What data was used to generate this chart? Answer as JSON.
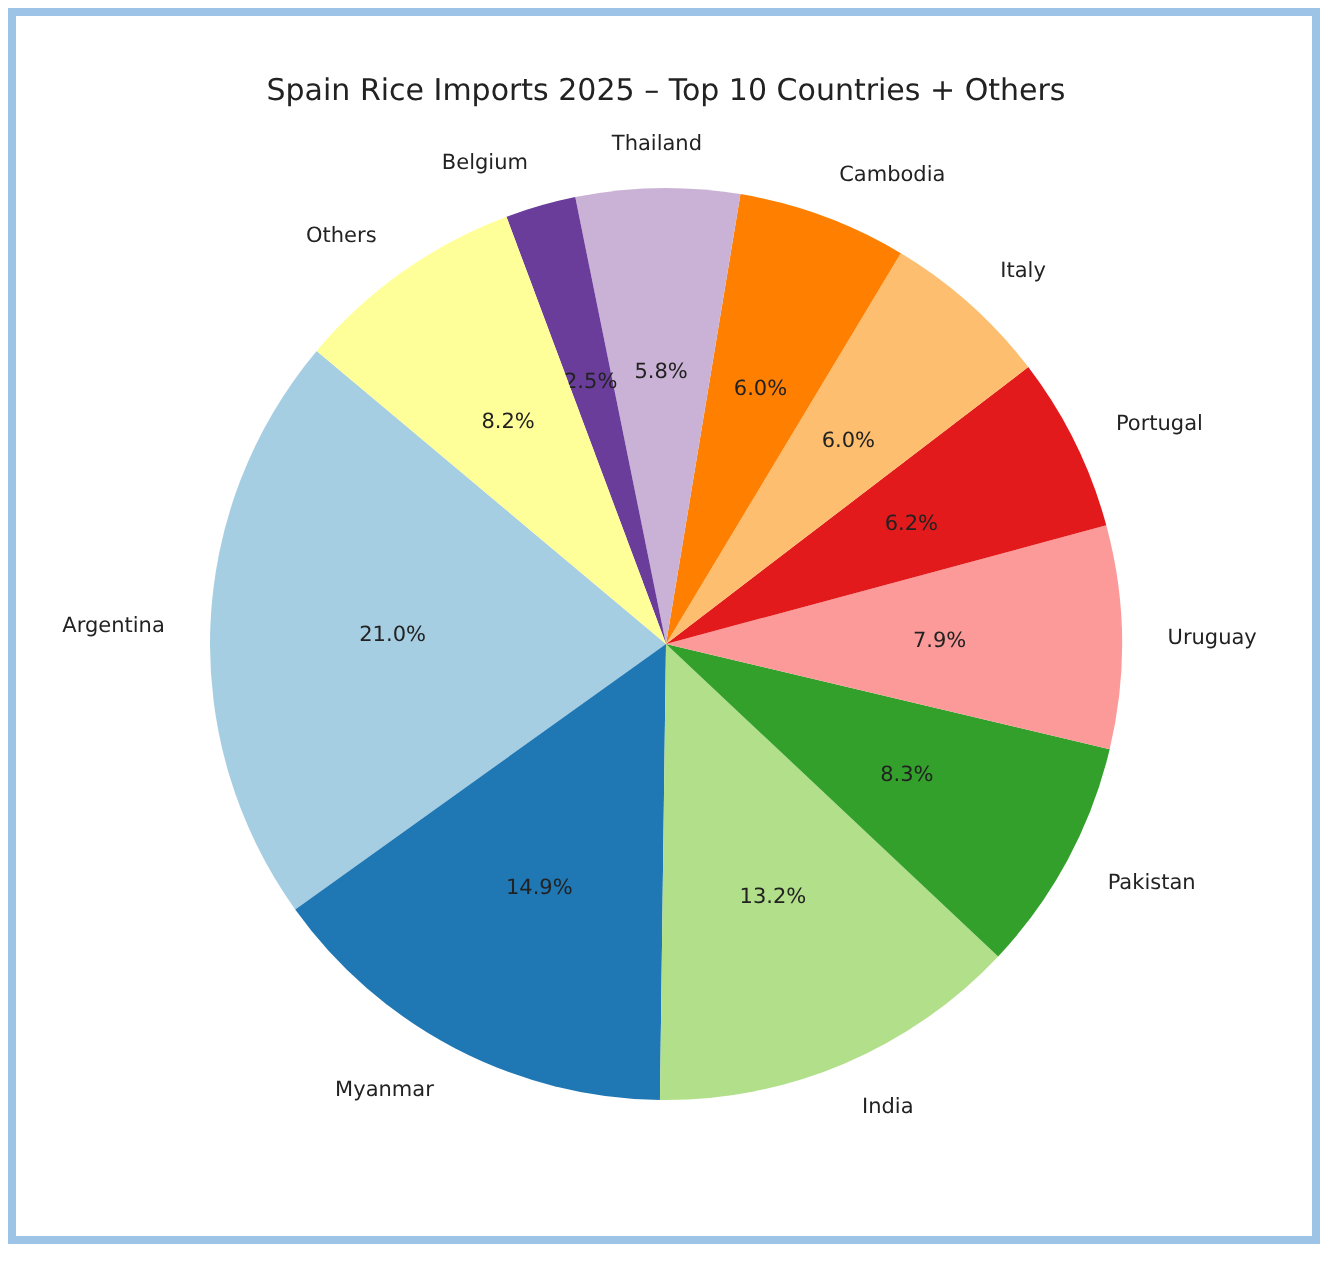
{
  "chart_data": {
    "type": "pie",
    "title": "Spain Rice Imports 2025 – Top 10 Countries + Others",
    "categories": [
      "Argentina",
      "Myanmar",
      "India",
      "Pakistan",
      "Uruguay",
      "Portugal",
      "Italy",
      "Cambodia",
      "Thailand",
      "Belgium",
      "Others"
    ],
    "values": [
      21.0,
      14.9,
      13.2,
      8.3,
      7.9,
      6.2,
      6.0,
      6.0,
      5.8,
      2.5,
      8.2
    ],
    "colors": [
      "#a6cee3",
      "#1f78b4",
      "#b2df8a",
      "#33a02c",
      "#fb9a99",
      "#e31a1c",
      "#fdbf6f",
      "#ff7f00",
      "#cab2d6",
      "#6a3d9a",
      "#ffff99"
    ],
    "value_labels": [
      "21.0%",
      "14.9%",
      "13.2%",
      "8.3%",
      "7.9%",
      "6.2%",
      "6.0%",
      "6.0%",
      "5.8%",
      "2.5%",
      "8.2%"
    ]
  }
}
